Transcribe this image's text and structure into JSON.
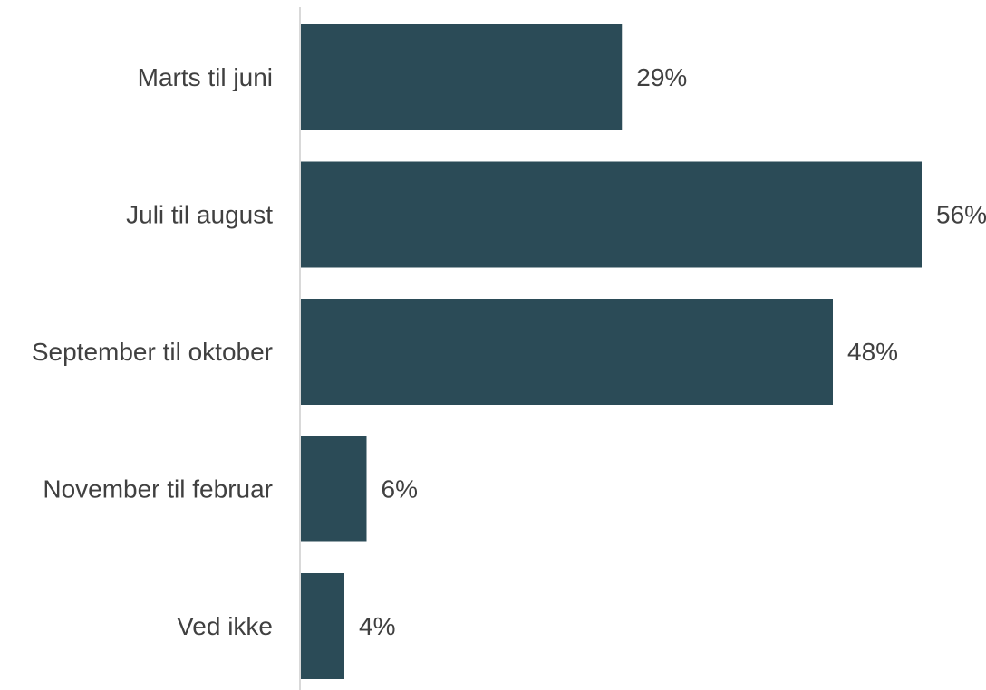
{
  "chart_data": {
    "type": "bar",
    "orientation": "horizontal",
    "categories": [
      "Marts til juni",
      "Juli til august",
      "September til oktober",
      "November til februar",
      "Ved ikke"
    ],
    "values": [
      29,
      56,
      48,
      6,
      4
    ],
    "value_labels": [
      "29%",
      "56%",
      "48%",
      "6%",
      "4%"
    ],
    "unit": "%",
    "title": "",
    "xlabel": "",
    "ylabel": "",
    "xlim": [
      0,
      56
    ],
    "grid": false,
    "legend": "none",
    "colors": {
      "bar": "#2b4b57",
      "axis": "#d9d9d9",
      "text": "#404040"
    }
  }
}
